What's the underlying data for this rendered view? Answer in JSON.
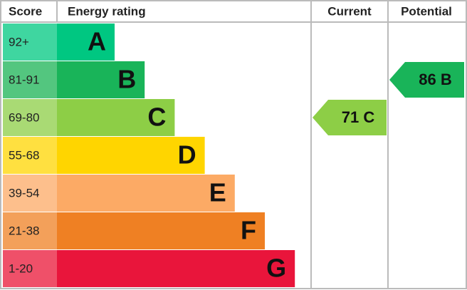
{
  "headers": {
    "score": "Score",
    "rating": "Energy rating",
    "current": "Current",
    "potential": "Potential"
  },
  "bands": [
    {
      "score": "92+",
      "letter": "A",
      "color": "#00c781",
      "light": "#3fd6a0"
    },
    {
      "score": "81-91",
      "letter": "B",
      "color": "#19b459",
      "light": "#53c67f"
    },
    {
      "score": "69-80",
      "letter": "C",
      "color": "#8dce46",
      "light": "#a9da74"
    },
    {
      "score": "55-68",
      "letter": "D",
      "color": "#ffd500",
      "light": "#ffe040"
    },
    {
      "score": "39-54",
      "letter": "E",
      "color": "#fcaa65",
      "light": "#fdbf8c"
    },
    {
      "score": "21-38",
      "letter": "F",
      "color": "#ef8023",
      "light": "#f3a05a"
    },
    {
      "score": "1-20",
      "letter": "G",
      "color": "#e9153b",
      "light": "#ef5069"
    }
  ],
  "current": {
    "label": "71 C",
    "color": "#8dce46"
  },
  "potential": {
    "label": "86 B",
    "color": "#19b459"
  }
}
